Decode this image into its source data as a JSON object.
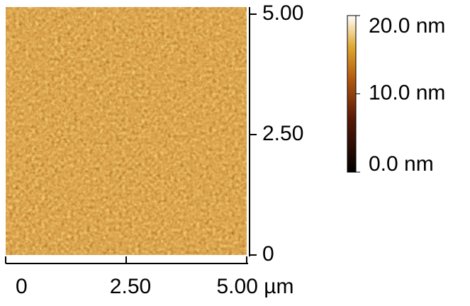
{
  "chart_data": {
    "type": "image",
    "xlim": [
      0,
      5
    ],
    "xticks": [
      0,
      {
        "value": 2.5,
        "label": "2.50"
      },
      {
        "value": 5,
        "label": "5.00 µm"
      }
    ],
    "ylim": [
      0,
      5
    ],
    "yticks": [
      0,
      {
        "value": 2.5,
        "label": "2.50"
      },
      {
        "value": 5,
        "label": "5.00"
      }
    ],
    "zlim": [
      0,
      20
    ],
    "zticks": [
      {
        "value": 0,
        "label": "0.0 nm"
      },
      {
        "value": 10,
        "label": "10.0 nm"
      },
      {
        "value": 20,
        "label": "20.0 nm"
      }
    ]
  }
}
